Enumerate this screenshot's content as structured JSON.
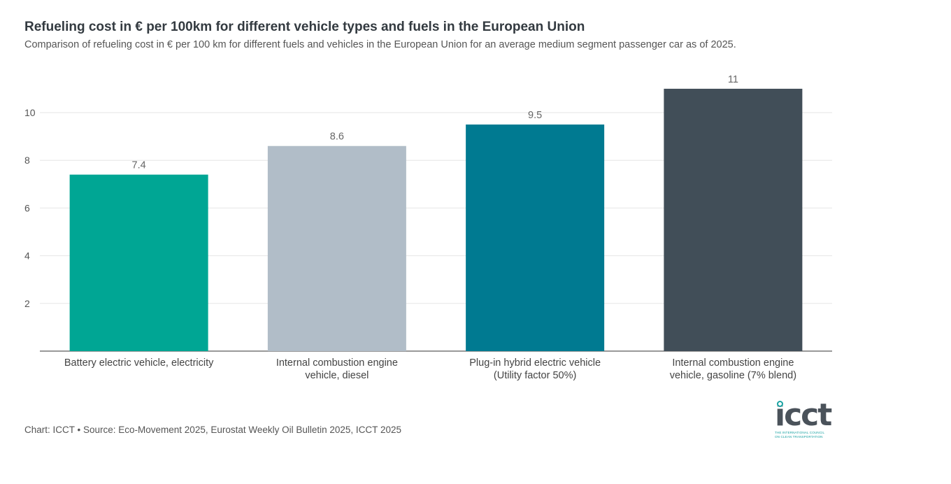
{
  "header": {
    "title": "Refueling cost in € per 100km for different vehicle types and fuels in the European Union",
    "subtitle": "Comparison of refueling cost in € per 100 km for different fuels and vehicles in the European Union for an average medium segment passenger car as of 2025."
  },
  "footer": {
    "source": "Chart: ICCT • Source: Eco-Movement 2025, Eurostat Weekly Oil Bulletin 2025, ICCT 2025"
  },
  "logo": {
    "word": "icct",
    "line1": "THE INTERNATIONAL COUNCIL",
    "line2": "ON CLEAN TRANSPORTATION"
  },
  "chart_data": {
    "type": "bar",
    "categories": [
      [
        "Battery electric vehicle, electricity"
      ],
      [
        "Internal combustion engine",
        "vehicle, diesel"
      ],
      [
        "Plug-in hybrid electric vehicle",
        "(Utility factor 50%)"
      ],
      [
        "Internal combustion engine",
        "vehicle, gasoline (7% blend)"
      ]
    ],
    "values": [
      7.4,
      8.6,
      9.5,
      11
    ],
    "value_labels": [
      "7.4",
      "8.6",
      "9.5",
      "11"
    ],
    "colors": [
      "#00a694",
      "#b1bdc8",
      "#007a91",
      "#414e58"
    ],
    "yticks": [
      2,
      4,
      6,
      8,
      10
    ],
    "ylim": [
      0,
      11
    ],
    "grid": true,
    "xlabel": "",
    "ylabel": ""
  }
}
